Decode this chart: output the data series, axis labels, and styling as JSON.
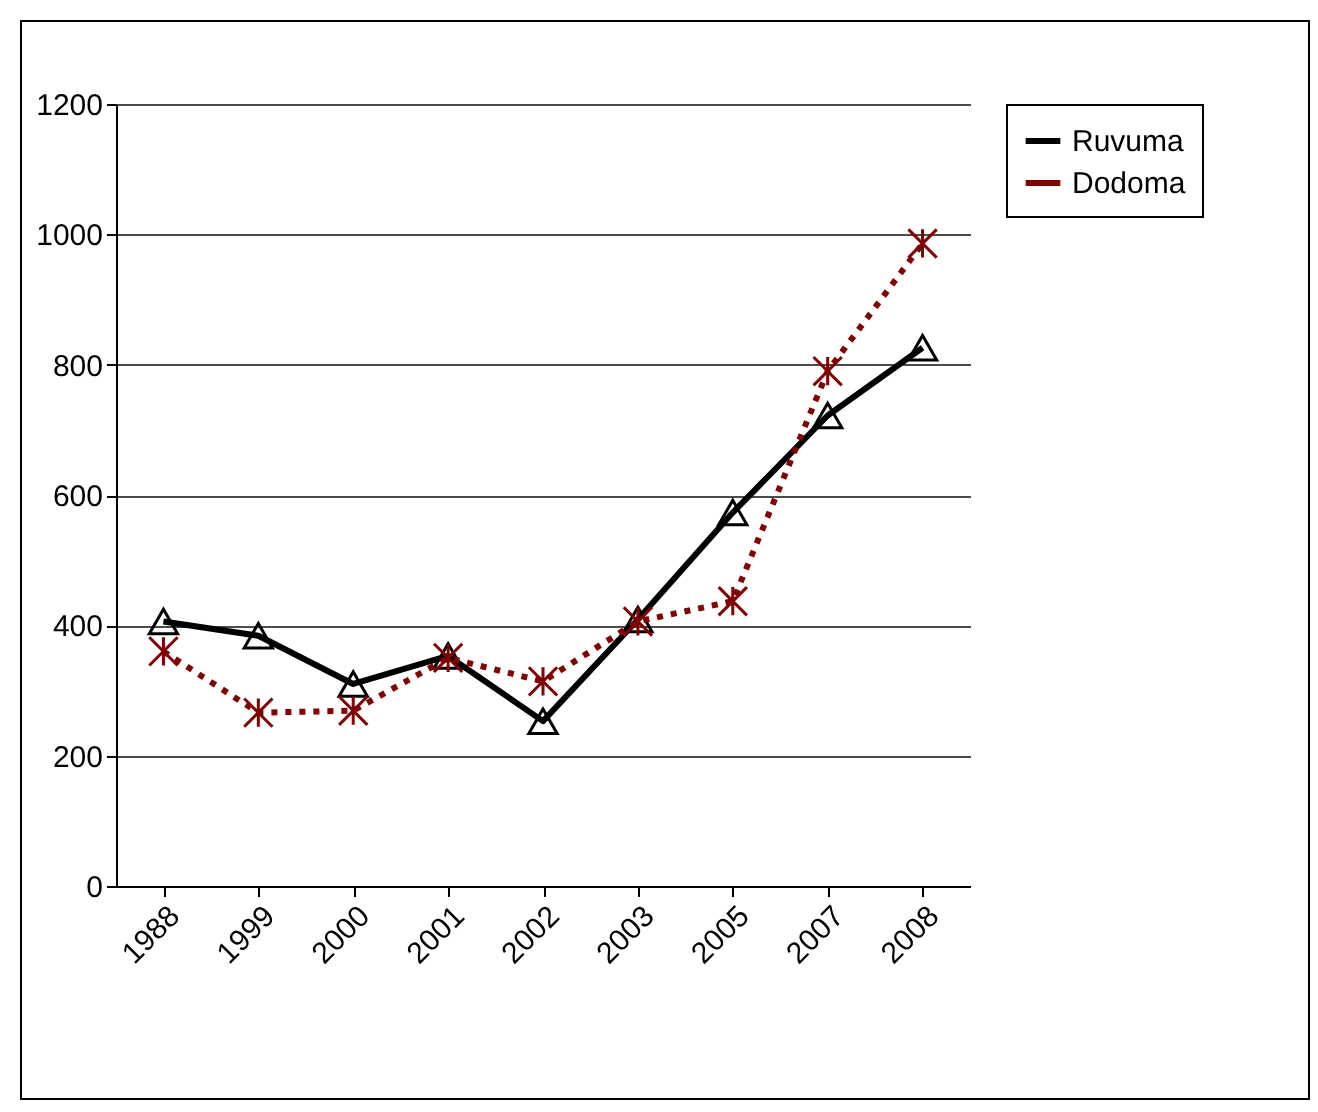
{
  "chart_data": {
    "type": "line",
    "categories": [
      "1988",
      "1999",
      "2000",
      "2001",
      "2002",
      "2003",
      "2005",
      "2007",
      "2008"
    ],
    "series": [
      {
        "name": "Ruvuma",
        "color": "#000000",
        "marker": "triangle",
        "line_style": "solid",
        "values": [
          406,
          384,
          310,
          353,
          253,
          409,
          573,
          722,
          826
        ]
      },
      {
        "name": "Dodoma",
        "color": "#800000",
        "marker": "cross",
        "line_style": "dotted",
        "values": [
          360,
          266,
          269,
          350,
          314,
          406,
          437,
          790,
          986
        ]
      }
    ],
    "ylim": [
      0,
      1200
    ],
    "yticks": [
      0,
      200,
      400,
      600,
      800,
      1000,
      1200
    ],
    "grid": "y",
    "legend": "right"
  }
}
